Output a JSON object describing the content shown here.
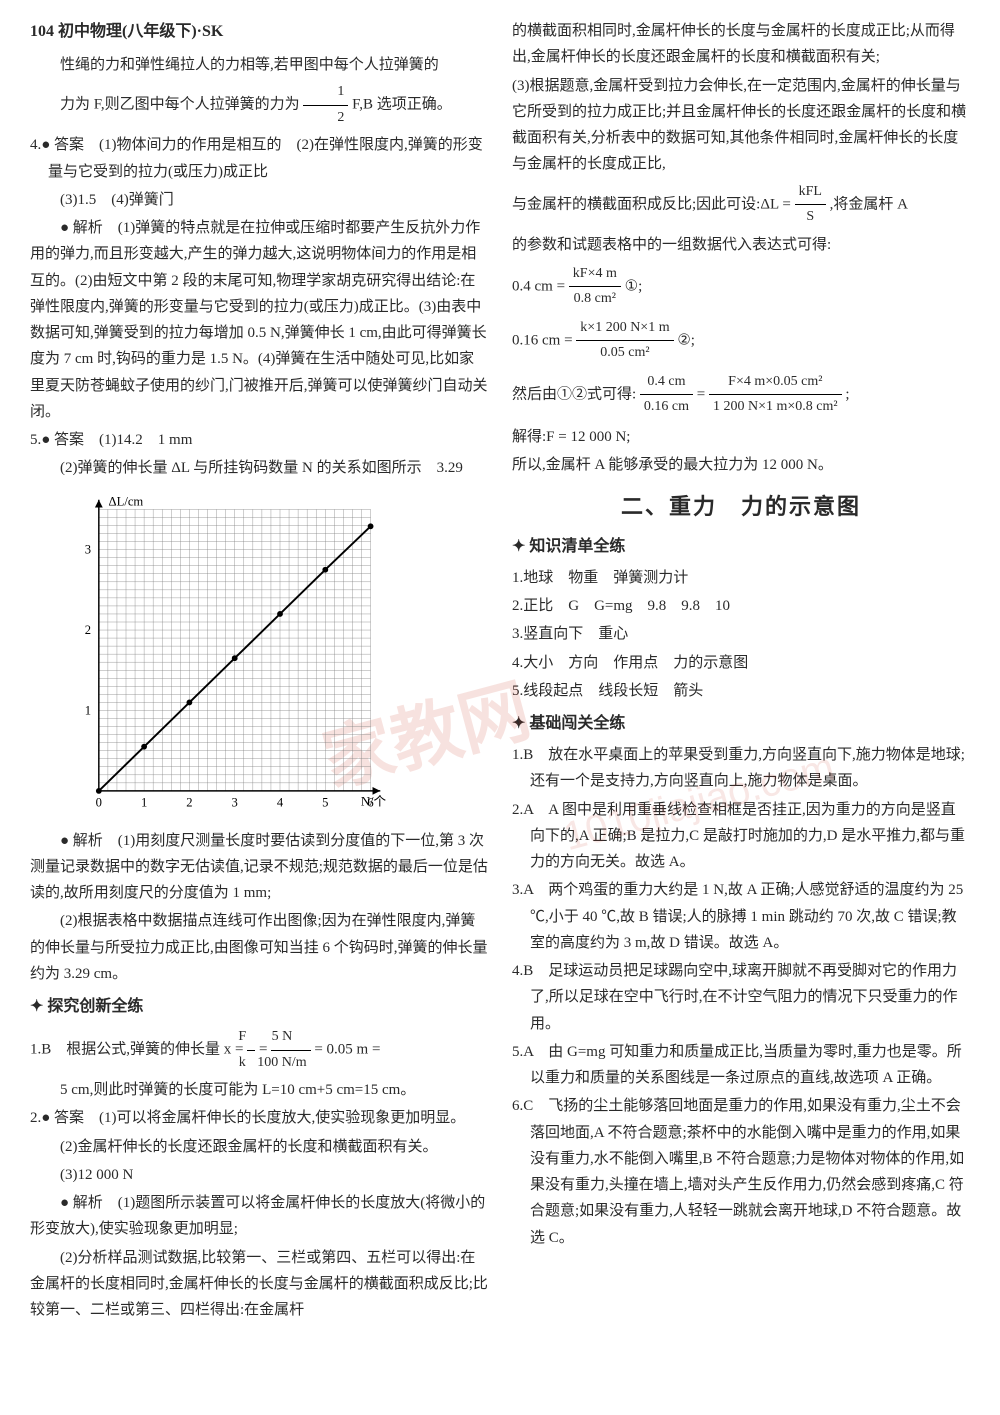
{
  "header": {
    "pageNum": "104",
    "title": "初中物理(八年级下)·SK"
  },
  "left": {
    "p1": "性绳的力和弹性绳拉人的力相等,若甲图中每个人拉弹簧的",
    "p2_pre": "力为 F,则乙图中每个人拉弹簧的力为",
    "p2_post": "F,B 选项正确。",
    "q4_title": "4.● 答案　(1)物体间力的作用是相互的　(2)在弹性限度内,弹簧的形变量与它受到的拉力(或压力)成正比",
    "q4_sub": "(3)1.5　(4)弹簧门",
    "q4_ana": "● 解析　(1)弹簧的特点就是在拉伸或压缩时都要产生反抗外力作用的弹力,而且形变越大,产生的弹力越大,这说明物体间力的作用是相互的。(2)由短文中第 2 段的末尾可知,物理学家胡克研究得出结论:在弹性限度内,弹簧的形变量与它受到的拉力(或压力)成正比。(3)由表中数据可知,弹簧受到的拉力每增加 0.5 N,弹簧伸长 1 cm,由此可得弹簧长度为 7 cm 时,钩码的重力是 1.5 N。(4)弹簧在生活中随处可见,比如家里夏天防苍蝇蚊子使用的纱门,门被推开后,弹簧可以使弹簧纱门自动关闭。",
    "q5_title": "5.● 答案　(1)14.2　1 mm",
    "q5_sub": "(2)弹簧的伸长量 ΔL 与所挂钩码数量 N 的关系如图所示　3.29",
    "q5_ana1": "● 解析　(1)用刻度尺测量长度时要估读到分度值的下一位,第 3 次测量记录数据中的数字无估读值,记录不规范;规范数据的最后一位是估读的,故所用刻度尺的分度值为 1 mm;",
    "q5_ana2": "(2)根据表格中数据描点连线可作出图像;因为在弹性限度内,弹簧的伸长量与所受拉力成正比,由图像可知当挂 6 个钩码时,弹簧的伸长量约为 3.29 cm。",
    "tansuo_title": "探究创新全练",
    "tq1_pre": "1.B　根据公式,弹簧的伸长量 x = ",
    "tq1_mid": " = ",
    "tq1_post": " = 0.05 m = ",
    "tq1_line2": "5 cm,则此时弹簧的长度可能为 L=10 cm+5 cm=15 cm。",
    "tq2_title": "2.● 答案　(1)可以将金属杆伸长的长度放大,使实验现象更加明显。",
    "tq2_sub2": "(2)金属杆伸长的长度还跟金属杆的长度和横截面积有关。",
    "tq2_sub3": "(3)12 000 N",
    "tq2_ana1": "● 解析　(1)题图所示装置可以将金属杆伸长的长度放大(将微小的形变放大),使实验现象更加明显;",
    "tq2_ana2": "(2)分析样品测试数据,比较第一、三栏或第四、五栏可以得出:在金属杆的长度相同时,金属杆伸长的长度与金属杆的横截面积成反比;比较第一、二栏或第三、四栏得出:在金属杆"
  },
  "right": {
    "p1": "的横截面积相同时,金属杆伸长的长度与金属杆的长度成正比;从而得出,金属杆伸长的长度还跟金属杆的长度和横截面积有关;",
    "p2": "(3)根据题意,金属杆受到拉力会伸长,在一定范围内,金属杆的伸长量与它所受到的拉力成正比;并且金属杆伸长的长度还跟金属杆的长度和横截面积有关,分析表中的数据可知,其他条件相同时,金属杆伸长的长度与金属杆的长度成正比,",
    "p3_pre": "与金属杆的横截面积成反比;因此可设:ΔL = ",
    "p3_post": ",将金属杆 A",
    "p4": "的参数和试题表格中的一组数据代入表达式可得:",
    "eq1_pre": "0.4 cm = ",
    "eq1_post": "①;",
    "eq2_pre": "0.16 cm = ",
    "eq2_post": "②;",
    "eq3_pre": "然后由①②式可得:",
    "eq3_mid": " = ",
    "eq3_post": ";",
    "p5": "解得:F = 12 000 N;",
    "p6": "所以,金属杆 A 能够承受的最大拉力为 12 000 N。",
    "section2_title": "二、重力　力的示意图",
    "zhishi_title": "知识清单全练",
    "k1": "1.地球　物重　弹簧测力计",
    "k2": "2.正比　G　G=mg　9.8　9.8　10",
    "k3": "3.竖直向下　重心",
    "k4": "4.大小　方向　作用点　力的示意图",
    "k5": "5.线段起点　线段长短　箭头",
    "jichu_title": "基础闯关全练",
    "j1": "1.B　放在水平桌面上的苹果受到重力,方向竖直向下,施力物体是地球;还有一个是支持力,方向竖直向上,施力物体是桌面。",
    "j2": "2.A　A 图中是利用重垂线检查相框是否挂正,因为重力的方向是竖直向下的,A 正确;B 是拉力,C 是敲打时施加的力,D 是水平推力,都与重力的方向无关。故选 A。",
    "j3": "3.A　两个鸡蛋的重力大约是 1 N,故 A 正确;人感觉舒适的温度约为 25 ℃,小于 40 ℃,故 B 错误;人的脉搏 1 min 跳动约 70 次,故 C 错误;教室的高度约为 3 m,故 D 错误。故选 A。",
    "j4": "4.B　足球运动员把足球踢向空中,球离开脚就不再受脚对它的作用力了,所以足球在空中飞行时,在不计空气阻力的情况下只受重力的作用。",
    "j5": "5.A　由 G=mg 可知重力和质量成正比,当质量为零时,重力也是零。所以重力和质量的关系图线是一条过原点的直线,故选项 A 正确。",
    "j6": "6.C　飞扬的尘土能够落回地面是重力的作用,如果没有重力,尘土不会落回地面,A 不符合题意;茶杯中的水能倒入嘴中是重力的作用,如果没有重力,水不能倒入嘴里,B 不符合题意;力是物体对物体的作用,如果没有重力,头撞在墙上,墙对头产生反作用力,仍然会感到疼痛,C 符合题意;如果没有重力,人轻轻一跳就会离开地球,D 不符合题意。故选 C。"
  },
  "graph": {
    "ylabel": "ΔL/cm",
    "xlabel": "N/个",
    "xmax": 6,
    "ymax": 3.5,
    "xticks": [
      0,
      1,
      2,
      3,
      4,
      5,
      6
    ],
    "yticks": [
      0,
      1,
      2,
      3
    ],
    "points": [
      [
        0,
        0
      ],
      [
        1,
        0.55
      ],
      [
        2,
        1.1
      ],
      [
        3,
        1.65
      ],
      [
        4,
        2.2
      ],
      [
        5,
        2.75
      ],
      [
        6,
        3.29
      ]
    ],
    "gridColor": "#808080",
    "lineColor": "#000000",
    "bgColor": "#ffffff"
  },
  "fractions": {
    "half": {
      "num": "1",
      "den": "2"
    },
    "Fk": {
      "num": "F",
      "den": "k"
    },
    "f5n": {
      "num": "5 N",
      "den": "100 N/m"
    },
    "kFLS": {
      "num": "kFL",
      "den": "S"
    },
    "eq1": {
      "num": "kF×4 m",
      "den": "0.8 cm²"
    },
    "eq2": {
      "num": "k×1 200 N×1 m",
      "den": "0.05 cm²"
    },
    "eq3a": {
      "num": "0.4 cm",
      "den": "0.16 cm"
    },
    "eq3b": {
      "num": "F×4 m×0.05 cm²",
      "den": "1 200 N×1 m×0.8 cm²"
    }
  }
}
